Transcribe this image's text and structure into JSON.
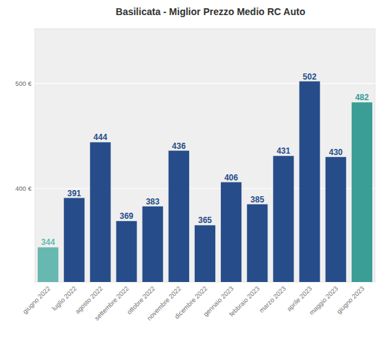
{
  "chart_data": {
    "type": "bar",
    "title": "Basilicata - Miglior Prezzo Medio RC Auto",
    "categories": [
      "giugno 2022",
      "luglio 2022",
      "agosto 2022",
      "settembre 2022",
      "ottobre 2022",
      "novembre 2022",
      "dicembre 2022",
      "gennaio 2023",
      "febbraio 2023",
      "marzo 2023",
      "aprile 2023",
      "maggio 2023",
      "giugno 2023"
    ],
    "values": [
      344,
      391,
      444,
      369,
      383,
      436,
      365,
      406,
      385,
      431,
      502,
      430,
      482
    ],
    "colors": [
      "#66b8b0",
      "#264d8a",
      "#264d8a",
      "#264d8a",
      "#264d8a",
      "#264d8a",
      "#264d8a",
      "#264d8a",
      "#264d8a",
      "#264d8a",
      "#264d8a",
      "#264d8a",
      "#3a9e96"
    ],
    "ylim": [
      311,
      552
    ],
    "yticks": [
      {
        "value": 400,
        "label": "400 €"
      },
      {
        "value": 500,
        "label": "500 €"
      }
    ],
    "grid": true,
    "data_labels": true
  }
}
